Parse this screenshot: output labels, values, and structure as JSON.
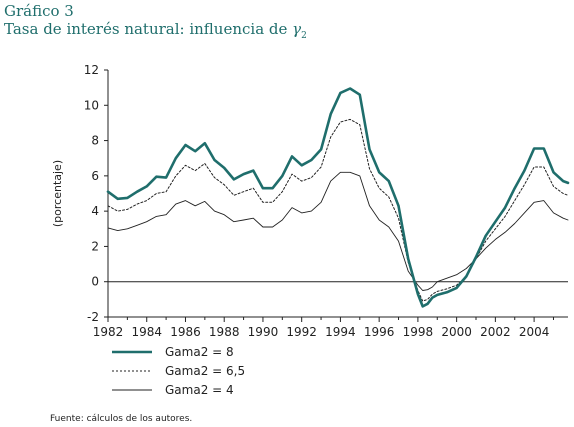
{
  "header": {
    "number": "Gráfico 3",
    "title_prefix": "Tasa de interés natural: influencia de ",
    "title_symbol": "γ",
    "title_sub": "2"
  },
  "source": "Fuente: cálculos de los autores.",
  "colors": {
    "series_main": "#1f6e6c",
    "series_other": "#222222"
  },
  "chart_data": {
    "type": "line",
    "title": "Tasa de interés natural: influencia de γ2",
    "ylabel": "(porcentaje)",
    "xlabel": "",
    "xlim": [
      1982,
      2005.75
    ],
    "ylim": [
      -2,
      12
    ],
    "xticks": [
      1982,
      1984,
      1986,
      1988,
      1990,
      1992,
      1994,
      1996,
      1998,
      2000,
      2002,
      2004
    ],
    "yticks": [
      -2,
      0,
      2,
      4,
      6,
      8,
      10,
      12
    ],
    "grid": false,
    "legend_position": "bottom-left",
    "x": [
      1982,
      1982.5,
      1983,
      1983.5,
      1984,
      1984.5,
      1985,
      1985.5,
      1986,
      1986.5,
      1987,
      1987.5,
      1988,
      1988.5,
      1989,
      1989.5,
      1990,
      1990.5,
      1991,
      1991.5,
      1992,
      1992.5,
      1993,
      1993.5,
      1994,
      1994.5,
      1995,
      1995.5,
      1996,
      1996.5,
      1997,
      1997.5,
      1998,
      1998.25,
      1998.5,
      1998.75,
      1999,
      1999.5,
      2000,
      2000.5,
      2001,
      2001.5,
      2002,
      2002.5,
      2003,
      2003.5,
      2004,
      2004.5,
      2005,
      2005.5,
      2005.75
    ],
    "series": [
      {
        "name": "Gama2 = 8",
        "style": "thick",
        "values": [
          5.1,
          4.7,
          4.75,
          5.1,
          5.4,
          5.95,
          5.9,
          7.0,
          7.75,
          7.4,
          7.85,
          6.9,
          6.45,
          5.8,
          6.1,
          6.3,
          5.3,
          5.3,
          6.0,
          7.1,
          6.6,
          6.9,
          7.5,
          9.5,
          10.7,
          10.95,
          10.6,
          7.5,
          6.2,
          5.7,
          4.3,
          1.3,
          -0.7,
          -1.4,
          -1.25,
          -0.9,
          -0.75,
          -0.6,
          -0.35,
          0.3,
          1.4,
          2.6,
          3.4,
          4.2,
          5.3,
          6.3,
          7.55,
          7.55,
          6.2,
          5.7,
          5.6
        ]
      },
      {
        "name": "Gama2 = 6,5",
        "style": "dotted",
        "values": [
          4.3,
          4.0,
          4.1,
          4.4,
          4.6,
          5.0,
          5.1,
          6.0,
          6.6,
          6.3,
          6.7,
          5.9,
          5.5,
          4.9,
          5.1,
          5.3,
          4.5,
          4.5,
          5.1,
          6.1,
          5.7,
          5.9,
          6.5,
          8.2,
          9.05,
          9.2,
          8.9,
          6.4,
          5.3,
          4.8,
          3.6,
          1.1,
          -0.5,
          -1.1,
          -1.0,
          -0.7,
          -0.55,
          -0.4,
          -0.2,
          0.3,
          1.3,
          2.3,
          3.0,
          3.7,
          4.6,
          5.5,
          6.5,
          6.5,
          5.4,
          5.0,
          4.9
        ]
      },
      {
        "name": "Gama2 = 4",
        "style": "thin",
        "values": [
          3.05,
          2.9,
          3.0,
          3.2,
          3.4,
          3.7,
          3.8,
          4.4,
          4.6,
          4.3,
          4.55,
          4.0,
          3.8,
          3.4,
          3.5,
          3.6,
          3.1,
          3.1,
          3.5,
          4.2,
          3.9,
          4.0,
          4.5,
          5.7,
          6.2,
          6.2,
          6.0,
          4.3,
          3.5,
          3.1,
          2.3,
          0.6,
          -0.2,
          -0.5,
          -0.45,
          -0.3,
          0.0,
          0.2,
          0.4,
          0.75,
          1.3,
          1.9,
          2.4,
          2.8,
          3.3,
          3.9,
          4.5,
          4.6,
          3.9,
          3.6,
          3.5
        ]
      }
    ]
  }
}
